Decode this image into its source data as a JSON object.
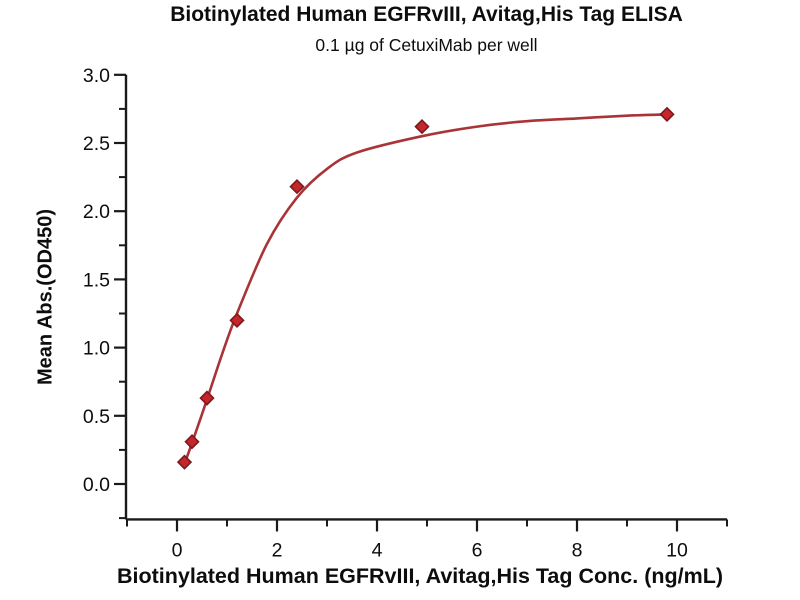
{
  "chart_data": {
    "type": "scatter",
    "title": "Biotinylated Human EGFRvIII, Avitag,His Tag ELISA",
    "subtitle": "0.1 µg of CetuxiMab per well",
    "xlabel": "Biotinylated Human EGFRvIII, Avitag,His Tag Conc. (ng/mL)",
    "ylabel": "Mean Abs.(OD450)",
    "x": [
      0.15,
      0.3,
      0.6,
      1.2,
      2.4,
      4.9,
      9.8
    ],
    "y": [
      0.16,
      0.31,
      0.63,
      1.2,
      2.18,
      2.62,
      2.71
    ],
    "xlim": [
      -1.02,
      11.0
    ],
    "ylim": [
      -0.26,
      3.0
    ],
    "x_major_ticks": [
      0,
      2,
      4,
      6,
      8,
      10
    ],
    "x_minor_ticks": [
      -1,
      1,
      3,
      5,
      7,
      9,
      11
    ],
    "y_major_ticks": [
      0.0,
      0.5,
      1.0,
      1.5,
      2.0,
      2.5,
      3.0
    ],
    "y_minor_ticks": [
      -0.25,
      0.25,
      0.75,
      1.25,
      1.75,
      2.25,
      2.75
    ],
    "curve_points": [
      [
        0.15,
        0.15
      ],
      [
        0.3,
        0.3
      ],
      [
        0.6,
        0.62
      ],
      [
        0.9,
        0.95
      ],
      [
        1.2,
        1.25
      ],
      [
        1.8,
        1.76
      ],
      [
        2.4,
        2.1
      ],
      [
        3.0,
        2.31
      ],
      [
        3.6,
        2.43
      ],
      [
        4.9,
        2.55
      ],
      [
        6.0,
        2.62
      ],
      [
        7.0,
        2.66
      ],
      [
        8.0,
        2.68
      ],
      [
        9.0,
        2.7
      ],
      [
        9.8,
        2.71
      ]
    ],
    "marker": "diamond",
    "grid": false,
    "legend": "none",
    "colors": {
      "curve": "#A93438",
      "marker_fill": "#C5252B",
      "marker_edge": "#7A1A1E",
      "axis": "#1a1a1a",
      "text": "#0d0d0d"
    }
  }
}
